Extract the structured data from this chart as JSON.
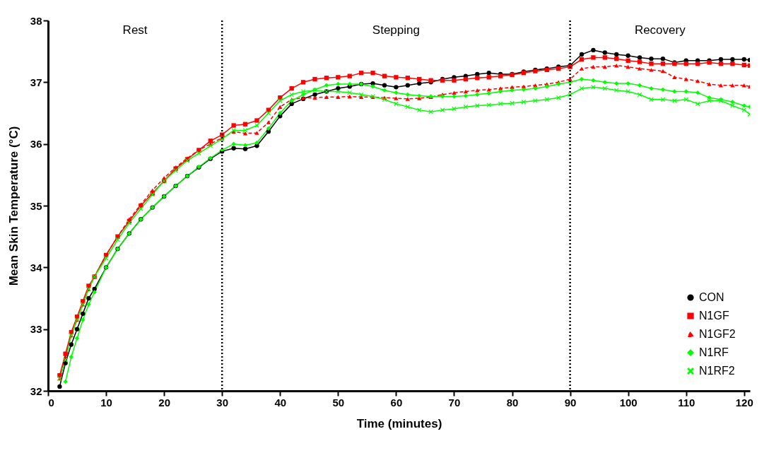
{
  "chart_data": {
    "type": "line",
    "xlabel": "Time (minutes)",
    "ylabel": "Mean Skin Temperature (°C)",
    "xlim": [
      0,
      121
    ],
    "xticks": [
      0,
      10,
      20,
      30,
      40,
      50,
      60,
      70,
      80,
      90,
      100,
      110,
      120
    ],
    "ylim": [
      32,
      38
    ],
    "yticks": [
      32,
      33,
      34,
      35,
      36,
      37,
      38
    ],
    "grid": false,
    "legend": "bottom right",
    "annotations": [
      "Rest",
      "Stepping",
      "Recovery"
    ],
    "ref_lines": [
      {
        "axis": "x",
        "value": 30,
        "line_style": "dotted",
        "color": "#000000"
      },
      {
        "axis": "x",
        "value": 90,
        "line_style": "dotted",
        "color": "#000000"
      }
    ],
    "x": [
      2,
      3,
      4,
      5,
      6,
      7,
      8,
      10,
      12,
      14,
      16,
      18,
      20,
      22,
      24,
      26,
      28,
      30,
      32,
      34,
      36,
      38,
      40,
      42,
      44,
      46,
      48,
      50,
      52,
      54,
      56,
      58,
      60,
      62,
      64,
      66,
      68,
      70,
      72,
      74,
      76,
      78,
      80,
      82,
      84,
      86,
      88,
      90,
      92,
      94,
      96,
      98,
      100,
      102,
      104,
      106,
      108,
      110,
      112,
      114,
      116,
      118,
      120,
      121
    ],
    "series": [
      {
        "name": "CON",
        "color": "#000000",
        "marker": "circle",
        "line_style": "solid",
        "values": [
          32.07,
          32.45,
          32.75,
          33.0,
          33.25,
          33.5,
          33.65,
          34.0,
          34.3,
          34.55,
          34.78,
          34.97,
          35.15,
          35.32,
          35.48,
          35.62,
          35.76,
          35.88,
          35.93,
          35.92,
          35.97,
          36.2,
          36.45,
          36.65,
          36.73,
          36.8,
          36.85,
          36.9,
          36.93,
          36.97,
          36.98,
          36.95,
          36.92,
          36.95,
          36.98,
          37.0,
          37.05,
          37.08,
          37.1,
          37.13,
          37.15,
          37.13,
          37.13,
          37.17,
          37.2,
          37.22,
          37.25,
          37.27,
          37.45,
          37.52,
          37.48,
          37.45,
          37.43,
          37.4,
          37.38,
          37.38,
          37.32,
          37.35,
          37.35,
          37.35,
          37.37,
          37.37,
          37.37,
          37.36
        ]
      },
      {
        "name": "N1GF",
        "color": "#ff0000",
        "marker": "square",
        "line_style": "solid",
        "values": [
          32.25,
          32.6,
          32.95,
          33.2,
          33.45,
          33.7,
          33.85,
          34.2,
          34.5,
          34.75,
          35.0,
          35.2,
          35.4,
          35.6,
          35.75,
          35.9,
          36.05,
          36.15,
          36.3,
          36.32,
          36.38,
          36.55,
          36.75,
          36.9,
          37.0,
          37.05,
          37.07,
          37.08,
          37.1,
          37.15,
          37.15,
          37.1,
          37.08,
          37.07,
          37.05,
          37.03,
          37.03,
          37.03,
          37.05,
          37.07,
          37.08,
          37.1,
          37.12,
          37.15,
          37.18,
          37.2,
          37.22,
          37.25,
          37.37,
          37.4,
          37.4,
          37.38,
          37.35,
          37.33,
          37.3,
          37.3,
          37.3,
          37.3,
          37.3,
          37.32,
          37.3,
          37.3,
          37.28,
          37.27
        ]
      },
      {
        "name": "N1GF2",
        "color": "#ff0000",
        "marker": "triangle",
        "line_style": "dashed",
        "values": [
          32.2,
          32.55,
          32.9,
          33.15,
          33.4,
          33.65,
          33.85,
          34.2,
          34.5,
          34.78,
          35.02,
          35.25,
          35.45,
          35.62,
          35.77,
          35.9,
          36.0,
          36.1,
          36.2,
          36.17,
          36.18,
          36.35,
          36.6,
          36.72,
          36.75,
          36.75,
          36.76,
          36.76,
          36.77,
          36.76,
          36.76,
          36.75,
          36.74,
          36.73,
          36.74,
          36.76,
          36.8,
          36.83,
          36.85,
          36.87,
          36.88,
          36.9,
          36.92,
          36.93,
          36.95,
          36.97,
          37.0,
          37.05,
          37.22,
          37.25,
          37.25,
          37.27,
          37.25,
          37.22,
          37.2,
          37.18,
          37.08,
          37.05,
          37.02,
          36.97,
          36.95,
          36.95,
          36.95,
          36.93
        ]
      },
      {
        "name": "N1RF",
        "color": "#00ff00",
        "marker": "diamond",
        "line_style": "solid",
        "values": [
          null,
          32.15,
          32.55,
          32.85,
          33.15,
          33.4,
          33.6,
          34.0,
          34.3,
          34.55,
          34.78,
          34.97,
          35.15,
          35.32,
          35.48,
          35.63,
          35.77,
          35.9,
          36.0,
          35.98,
          36.02,
          36.25,
          36.5,
          36.7,
          36.8,
          36.88,
          36.95,
          36.97,
          36.97,
          36.97,
          36.93,
          36.87,
          36.83,
          36.8,
          36.78,
          36.77,
          36.77,
          36.77,
          36.78,
          36.8,
          36.82,
          36.85,
          36.87,
          36.88,
          36.9,
          36.93,
          36.97,
          37.0,
          37.05,
          37.03,
          37.0,
          36.98,
          36.98,
          36.95,
          36.9,
          36.88,
          36.85,
          36.85,
          36.83,
          36.75,
          36.72,
          36.68,
          36.62,
          36.6
        ]
      },
      {
        "name": "N1RF2",
        "color": "#00ff00",
        "marker": "cross",
        "line_style": "solid",
        "values": [
          32.2,
          32.5,
          32.9,
          33.15,
          33.4,
          33.65,
          33.85,
          34.15,
          34.45,
          34.72,
          34.95,
          35.18,
          35.4,
          35.57,
          35.73,
          35.85,
          35.97,
          36.08,
          36.22,
          36.22,
          36.3,
          36.5,
          36.7,
          36.8,
          36.85,
          36.87,
          36.85,
          36.85,
          36.83,
          36.8,
          36.77,
          36.72,
          36.65,
          36.6,
          36.55,
          36.52,
          36.55,
          36.57,
          36.6,
          36.62,
          36.63,
          36.65,
          36.66,
          36.68,
          36.7,
          36.72,
          36.75,
          36.8,
          36.9,
          36.92,
          36.9,
          36.87,
          36.85,
          36.8,
          36.72,
          36.72,
          36.7,
          36.72,
          36.65,
          36.7,
          36.7,
          36.62,
          36.55,
          36.48
        ]
      }
    ]
  }
}
